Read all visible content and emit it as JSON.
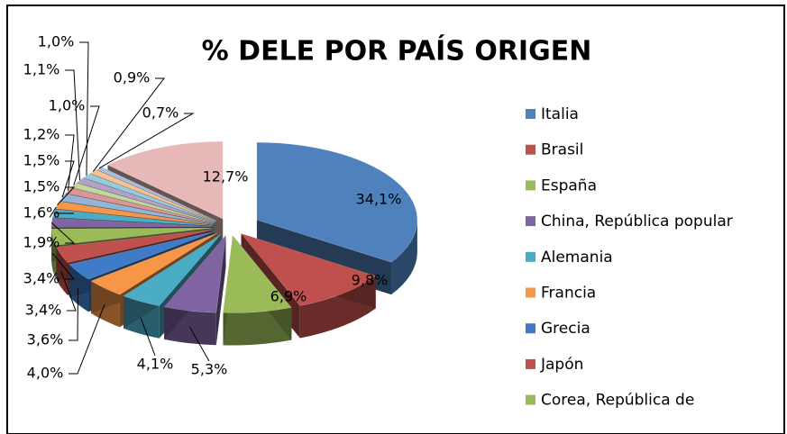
{
  "chart_data": {
    "type": "pie3d",
    "title": "% DELE POR PAÍS ORIGEN",
    "categories": [
      "Italia",
      "Brasil",
      "España",
      "China, República popular",
      "Alemania",
      "Francia",
      "Grecia",
      "Japón",
      "Corea, República de",
      null,
      null,
      null,
      null,
      null,
      null,
      null,
      null,
      null,
      null,
      null
    ],
    "values": [
      34.1,
      9.8,
      6.9,
      5.3,
      4.1,
      4.0,
      3.6,
      3.4,
      3.4,
      1.9,
      1.6,
      1.5,
      1.5,
      1.2,
      1.0,
      1.1,
      1.0,
      0.9,
      0.7,
      12.7
    ],
    "value_labels": [
      "34,1%",
      "9,8%",
      "6,9%",
      "5,3%",
      "4,1%",
      "4,0%",
      "3,6%",
      "3,4%",
      "3,4%",
      "1,9%",
      "1,6%",
      "1,5%",
      "1,5%",
      "1,2%",
      "1,0%",
      "1,1%",
      "1,0%",
      "0,9%",
      "0,7%",
      "12,7%"
    ],
    "colors": [
      "#4F81BD",
      "#C0504D",
      "#9BBB59",
      "#8064A2",
      "#4BACC6",
      "#F79646",
      "#3F7BC6",
      "#C0504D",
      "#9BBB59",
      "#8064A2",
      "#4BACC6",
      "#F79646",
      "#95B3D7",
      "#D99694",
      "#C3D69B",
      "#B3A2C7",
      "#93CDDD",
      "#FAC090",
      "#A6BDDB",
      "#E6B9B8"
    ],
    "legend": "right"
  }
}
